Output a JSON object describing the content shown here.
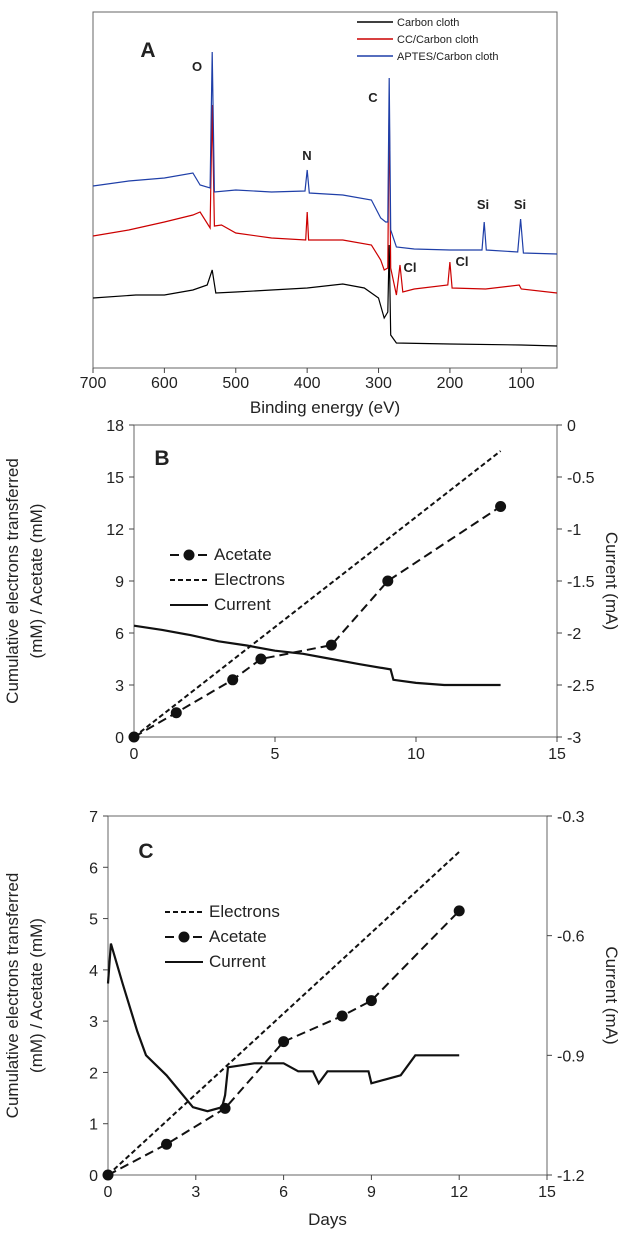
{
  "chart_data": [
    {
      "panel_label": "A",
      "type": "line",
      "xlabel": "Binding energy (eV)",
      "ylabel": "",
      "xlim": [
        700,
        50
      ],
      "x_reversed": true,
      "x_ticks": [
        700,
        600,
        500,
        400,
        300,
        200,
        100
      ],
      "legend": {
        "placement": "top-right",
        "entries": [
          "Carbon cloth",
          "CC/Carbon cloth",
          "APTES/Carbon cloth"
        ]
      },
      "series": [
        {
          "name": "Carbon cloth",
          "color": "#000000",
          "points": [
            [
              700,
              298
            ],
            [
              640,
              295
            ],
            [
              600,
              295
            ],
            [
              560,
              290
            ],
            [
              540,
              285
            ],
            [
              533,
              270
            ],
            [
              528,
              293
            ],
            [
              500,
              292
            ],
            [
              450,
              290
            ],
            [
              400,
              288
            ],
            [
              350,
              284
            ],
            [
              320,
              288
            ],
            [
              300,
              298
            ],
            [
              292,
              318
            ],
            [
              287,
              312
            ],
            [
              285,
              245
            ],
            [
              283,
              335
            ],
            [
              275,
              343
            ],
            [
              200,
              344
            ],
            [
              100,
              345
            ],
            [
              50,
              346
            ]
          ]
        },
        {
          "name": "CC/Carbon cloth",
          "color": "#cc0000",
          "points": [
            [
              700,
              236
            ],
            [
              650,
              230
            ],
            [
              600,
              222
            ],
            [
              560,
              215
            ],
            [
              550,
              212
            ],
            [
              536,
              228
            ],
            [
              533,
              105
            ],
            [
              530,
              226
            ],
            [
              520,
              225
            ],
            [
              500,
              233
            ],
            [
              450,
              238
            ],
            [
              402,
              240
            ],
            [
              400,
              212
            ],
            [
              398,
              240
            ],
            [
              350,
              240
            ],
            [
              310,
              245
            ],
            [
              297,
              260
            ],
            [
              292,
              270
            ],
            [
              287,
              268
            ],
            [
              285,
              105
            ],
            [
              283,
              268
            ],
            [
              275,
              295
            ],
            [
              270,
              265
            ],
            [
              266,
              292
            ],
            [
              250,
              289
            ],
            [
              203,
              285
            ],
            [
              200,
              262
            ],
            [
              197,
              288
            ],
            [
              150,
              289
            ],
            [
              103,
              285
            ],
            [
              100,
              289
            ],
            [
              50,
              293
            ]
          ]
        },
        {
          "name": "APTES/Carbon cloth",
          "color": "#1f3fa8",
          "points": [
            [
              700,
              186
            ],
            [
              650,
              181
            ],
            [
              600,
              178
            ],
            [
              560,
              173
            ],
            [
              550,
              185
            ],
            [
              536,
              188
            ],
            [
              533,
              52
            ],
            [
              530,
              192
            ],
            [
              500,
              190
            ],
            [
              450,
              192
            ],
            [
              403,
              191
            ],
            [
              400,
              170
            ],
            [
              397,
              193
            ],
            [
              350,
              195
            ],
            [
              310,
              200
            ],
            [
              297,
              218
            ],
            [
              290,
              222
            ],
            [
              287,
              222
            ],
            [
              285,
              78
            ],
            [
              283,
              230
            ],
            [
              275,
              247
            ],
            [
              250,
              249
            ],
            [
              200,
              250
            ],
            [
              155,
              250
            ],
            [
              152,
              222
            ],
            [
              149,
              250
            ],
            [
              105,
              252
            ],
            [
              101,
              219
            ],
            [
              97,
              253
            ],
            [
              50,
              254
            ]
          ]
        }
      ],
      "annotations": [
        "O",
        "N",
        "C",
        "Si",
        "Si",
        "Cl",
        "Cl"
      ]
    },
    {
      "panel_label": "B",
      "type": "line",
      "xlabel": "",
      "ylabel": "Cumulative electrons transferred (mM) / Acetate (mM)",
      "y2label": "Current (mA)",
      "xlim": [
        0,
        15
      ],
      "ylim": [
        0,
        18
      ],
      "y2lim": [
        -3,
        0
      ],
      "x_ticks": [
        0,
        5,
        10,
        15
      ],
      "y_ticks": [
        0,
        3,
        6,
        9,
        12,
        15,
        18
      ],
      "y2_ticks": [
        -3,
        -2.5,
        -2,
        -1.5,
        -1,
        -0.5,
        0
      ],
      "legend": {
        "placement": "top-left",
        "entries": [
          "Acetate",
          "Electrons",
          "Current"
        ]
      },
      "series": [
        {
          "name": "Acetate",
          "axis": "left",
          "style": "dashed-markers",
          "points": [
            [
              0,
              0
            ],
            [
              1.5,
              1.4
            ],
            [
              3.5,
              3.3
            ],
            [
              4.5,
              4.5
            ],
            [
              7,
              5.3
            ],
            [
              9,
              9
            ],
            [
              13,
              13.3
            ]
          ]
        },
        {
          "name": "Electrons",
          "axis": "left",
          "style": "dashed",
          "points": [
            [
              0,
              0
            ],
            [
              13,
              16.5
            ]
          ]
        },
        {
          "name": "Current",
          "axis": "right",
          "style": "solid",
          "points": [
            [
              0,
              -1.93
            ],
            [
              1,
              -1.97
            ],
            [
              2,
              -2.02
            ],
            [
              3,
              -2.08
            ],
            [
              4,
              -2.12
            ],
            [
              5,
              -2.17
            ],
            [
              6,
              -2.2
            ],
            [
              7,
              -2.25
            ],
            [
              8,
              -2.3
            ],
            [
              9.1,
              -2.35
            ],
            [
              9.2,
              -2.45
            ],
            [
              10,
              -2.48
            ],
            [
              11,
              -2.5
            ],
            [
              12,
              -2.5
            ],
            [
              13,
              -2.5
            ]
          ]
        }
      ]
    },
    {
      "panel_label": "C",
      "type": "line",
      "xlabel": "Days",
      "ylabel": "Cumulative electrons transferred (mM) / Acetate (mM)",
      "y2label": "Current (mA)",
      "xlim": [
        0,
        15
      ],
      "ylim": [
        0,
        7
      ],
      "y2lim": [
        -1.2,
        -0.3
      ],
      "x_ticks": [
        0,
        3,
        6,
        9,
        12,
        15
      ],
      "y_ticks": [
        0,
        1,
        2,
        3,
        4,
        5,
        6,
        7
      ],
      "y2_ticks": [
        -1.2,
        -0.9,
        -0.6,
        -0.3
      ],
      "legend": {
        "placement": "top-left",
        "entries": [
          "Electrons",
          "Acetate",
          "Current"
        ]
      },
      "series": [
        {
          "name": "Electrons",
          "axis": "left",
          "style": "dashed",
          "points": [
            [
              0,
              0
            ],
            [
              12,
              6.3
            ]
          ]
        },
        {
          "name": "Acetate",
          "axis": "left",
          "style": "dashed-markers",
          "points": [
            [
              0,
              0
            ],
            [
              2,
              0.6
            ],
            [
              4,
              1.3
            ],
            [
              6,
              2.6
            ],
            [
              8,
              3.1
            ],
            [
              9,
              3.4
            ],
            [
              12,
              5.15
            ]
          ]
        },
        {
          "name": "Current",
          "axis": "right",
          "style": "solid",
          "points": [
            [
              0,
              -0.72
            ],
            [
              0.1,
              -0.62
            ],
            [
              0.5,
              -0.72
            ],
            [
              1,
              -0.84
            ],
            [
              1.3,
              -0.9
            ],
            [
              2,
              -0.95
            ],
            [
              2.9,
              -1.03
            ],
            [
              3.4,
              -1.04
            ],
            [
              3.9,
              -1.03
            ],
            [
              4,
              -1.0
            ],
            [
              4.1,
              -0.93
            ],
            [
              5,
              -0.92
            ],
            [
              5.5,
              -0.92
            ],
            [
              6,
              -0.92
            ],
            [
              6.5,
              -0.94
            ],
            [
              7,
              -0.94
            ],
            [
              7.2,
              -0.97
            ],
            [
              7.5,
              -0.94
            ],
            [
              8,
              -0.94
            ],
            [
              8.9,
              -0.94
            ],
            [
              9,
              -0.97
            ],
            [
              9.5,
              -0.96
            ],
            [
              10,
              -0.95
            ],
            [
              10.5,
              -0.9
            ],
            [
              12,
              -0.9
            ]
          ]
        }
      ]
    }
  ]
}
